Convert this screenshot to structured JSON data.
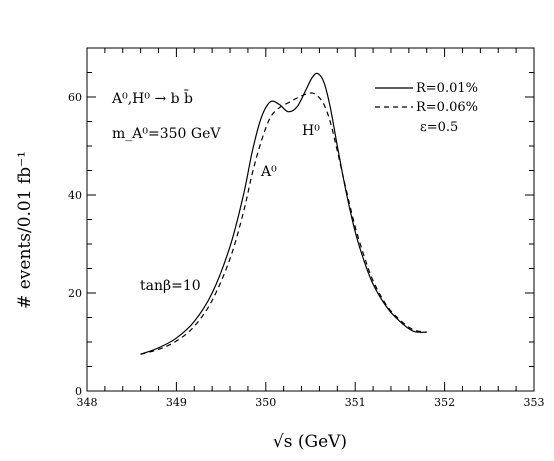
{
  "chart_data": {
    "type": "line",
    "xlabel": "√s (GeV)",
    "ylabel": "# events/0.01 fb⁻¹",
    "xlim": [
      348,
      353
    ],
    "ylim": [
      0,
      70
    ],
    "x_ticks": [
      "348",
      "349",
      "350",
      "351",
      "352",
      "353"
    ],
    "y_ticks": [
      "0",
      "20",
      "40",
      "60"
    ],
    "legend": {
      "placement": "top-right"
    },
    "grid": false,
    "annotations": {
      "process": "A⁰,H⁰ → b b̄",
      "mass": "m_A⁰=350 GeV",
      "tanbeta": "tanβ=10",
      "epsilon": "ε=0.5",
      "peak_A": "A⁰",
      "peak_H": "H⁰"
    },
    "series": [
      {
        "name": "R=0.01%",
        "style": "solid",
        "x": [
          348.6,
          348.8,
          349.0,
          349.2,
          349.4,
          349.6,
          349.75,
          349.85,
          349.95,
          350.05,
          350.15,
          350.25,
          350.35,
          350.45,
          350.52,
          350.58,
          350.65,
          350.72,
          350.8,
          350.9,
          351.0,
          351.1,
          351.2,
          351.35,
          351.5,
          351.65,
          351.8
        ],
        "y": [
          7.5,
          8.8,
          10.8,
          14.2,
          20.0,
          29.5,
          40.0,
          49.0,
          55.8,
          59.0,
          58.5,
          57.0,
          58.0,
          61.5,
          64.0,
          64.8,
          63.0,
          58.0,
          50.0,
          40.5,
          32.5,
          26.5,
          21.8,
          17.2,
          14.2,
          12.2,
          12.0
        ]
      },
      {
        "name": "R=0.06%",
        "style": "dashed",
        "x": [
          348.6,
          348.8,
          349.0,
          349.2,
          349.4,
          349.6,
          349.75,
          349.85,
          349.95,
          350.05,
          350.15,
          350.25,
          350.35,
          350.45,
          350.52,
          350.58,
          350.65,
          350.72,
          350.8,
          350.9,
          351.0,
          351.1,
          351.2,
          351.35,
          351.5,
          351.65,
          351.8
        ],
        "y": [
          7.5,
          8.5,
          10.2,
          13.2,
          18.5,
          27.0,
          36.5,
          44.5,
          51.0,
          55.8,
          57.8,
          58.8,
          59.8,
          60.6,
          60.8,
          60.2,
          58.5,
          55.0,
          49.0,
          41.0,
          33.5,
          27.5,
          22.5,
          17.5,
          14.5,
          12.5,
          12.0
        ]
      }
    ]
  }
}
